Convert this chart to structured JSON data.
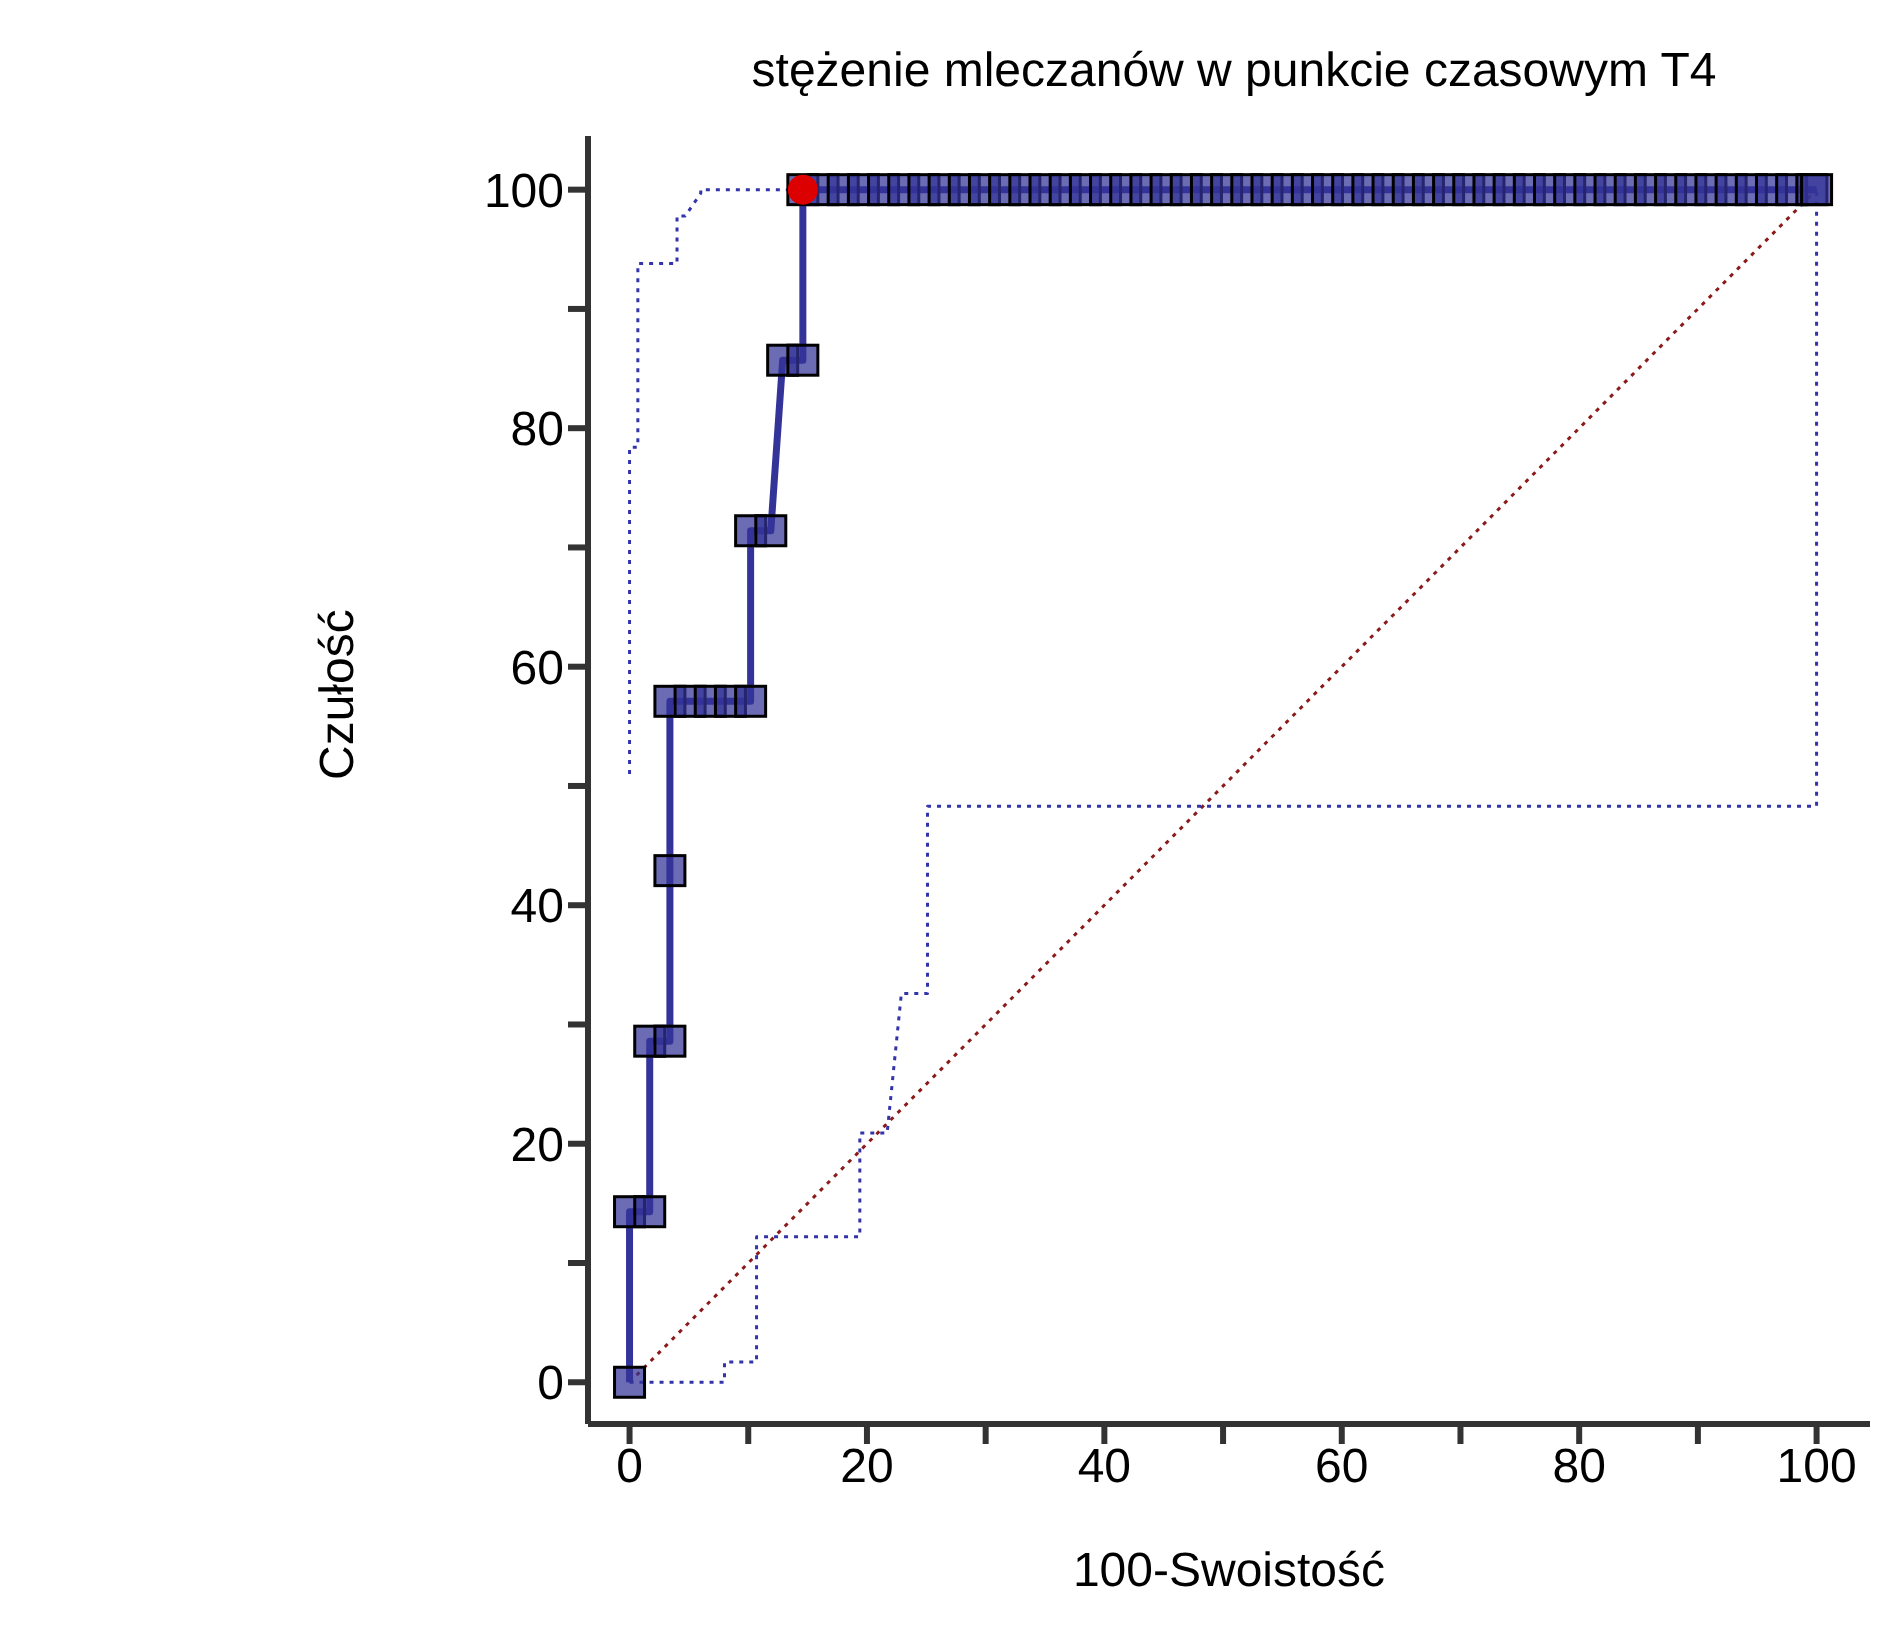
{
  "chart_data": {
    "type": "line",
    "title": "stężenie mleczanów w punkcie czasowym T4",
    "xlabel": "100-Swoistość",
    "ylabel": "Czułość",
    "xlim": [
      -3.5,
      104.5
    ],
    "ylim": [
      -3.5,
      104.5
    ],
    "xticks": [
      0,
      {
        "value": 10,
        "label": null
      },
      20,
      {
        "value": 30,
        "label": null
      },
      40,
      {
        "value": 50,
        "label": null
      },
      60,
      {
        "value": 70,
        "label": null
      },
      80,
      {
        "value": 90,
        "label": null
      },
      100
    ],
    "yticks": [
      0,
      {
        "value": 10,
        "label": null
      },
      20,
      {
        "value": 30,
        "label": null
      },
      40,
      {
        "value": 50,
        "label": null
      },
      60,
      {
        "value": 70,
        "label": null
      },
      80,
      {
        "value": 90,
        "label": null
      },
      100
    ],
    "grid": false,
    "legend": false,
    "series": [
      {
        "color": "#8b1a1a",
        "line_style": "dotted",
        "marker": "none",
        "x": [
          0,
          100
        ],
        "values": [
          0,
          100
        ]
      },
      {
        "color": "#3333aa",
        "line_style": "dotted",
        "marker": "none",
        "x": [
          0,
          0,
          0.7,
          0.7,
          4,
          4,
          4.7,
          6,
          6,
          14.6
        ],
        "values": [
          51,
          78.4,
          78.4,
          93.8,
          93.8,
          97.8,
          97.8,
          99.7,
          100,
          100
        ]
      },
      {
        "color": "#3333aa",
        "line_style": "dotted",
        "marker": "none",
        "x": [
          0,
          8,
          8,
          10.7,
          10.7,
          19.4,
          19.4,
          21.7,
          22.9,
          25.1,
          25.1,
          100,
          100
        ],
        "values": [
          0,
          0,
          1.7,
          1.7,
          12.2,
          12.2,
          20.9,
          20.9,
          32.6,
          32.6,
          48.3,
          48.3,
          100
        ]
      },
      {
        "color": "#333399",
        "line_style": "solid",
        "marker": "square",
        "x": [
          0,
          0,
          1.7,
          1.7,
          3.4,
          3.4,
          3.4,
          5.1,
          6.8,
          8.5,
          10.2,
          10.2,
          11.9,
          12.9,
          14.6,
          14.6,
          16.3,
          18.0,
          19.7,
          21.4,
          23.1,
          24.8,
          26.5,
          28.2,
          29.9,
          31.6,
          33.3,
          35.0,
          36.7,
          38.4,
          40.1,
          41.8,
          43.5,
          45.2,
          46.9,
          48.6,
          50.3,
          52.0,
          53.7,
          55.4,
          57.1,
          58.8,
          60.5,
          62.2,
          63.9,
          65.6,
          67.3,
          69.0,
          70.7,
          72.4,
          74.1,
          75.8,
          77.5,
          79.2,
          80.9,
          82.6,
          84.3,
          86.0,
          87.7,
          89.4,
          91.1,
          92.8,
          94.5,
          96.2,
          97.9,
          99.6,
          100
        ],
        "values": [
          0,
          14.3,
          14.3,
          28.6,
          28.6,
          42.9,
          57.1,
          57.1,
          57.1,
          57.1,
          57.1,
          71.4,
          71.4,
          85.7,
          85.7,
          100,
          100,
          100,
          100,
          100,
          100,
          100,
          100,
          100,
          100,
          100,
          100,
          100,
          100,
          100,
          100,
          100,
          100,
          100,
          100,
          100,
          100,
          100,
          100,
          100,
          100,
          100,
          100,
          100,
          100,
          100,
          100,
          100,
          100,
          100,
          100,
          100,
          100,
          100,
          100,
          100,
          100,
          100,
          100,
          100,
          100,
          100,
          100,
          100,
          100,
          100,
          100
        ]
      },
      {
        "type": "scatter",
        "color": "#dd0000",
        "marker": "circle",
        "x": [
          14.6
        ],
        "values": [
          100
        ]
      }
    ]
  }
}
